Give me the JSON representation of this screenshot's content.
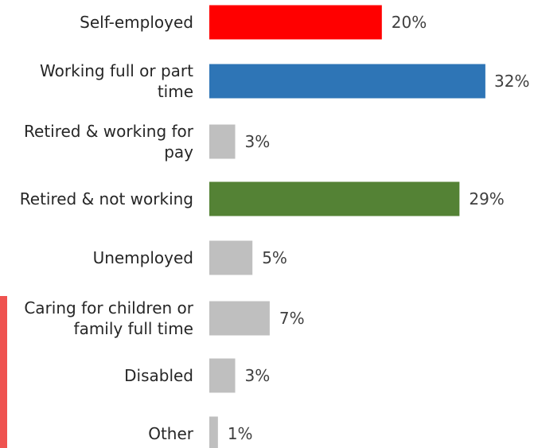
{
  "chart_data": {
    "type": "bar",
    "orientation": "horizontal",
    "categories": [
      [
        "Self-employed"
      ],
      [
        "Working full or part",
        "time"
      ],
      [
        "Retired & working for",
        "pay"
      ],
      [
        "Retired & not working"
      ],
      [
        "Unemployed"
      ],
      [
        "Caring for children or",
        "family full time"
      ],
      [
        "Disabled"
      ],
      [
        "Other"
      ]
    ],
    "values": [
      20,
      32,
      3,
      29,
      5,
      7,
      3,
      1
    ],
    "value_labels": [
      "20%",
      "32%",
      "3%",
      "29%",
      "5%",
      "7%",
      "3%",
      "1%"
    ],
    "colors": [
      "#ff0000",
      "#2e75b6",
      "#bfbfbf",
      "#548235",
      "#bfbfbf",
      "#bfbfbf",
      "#bfbfbf",
      "#bfbfbf"
    ],
    "title": "",
    "xlabel": "",
    "ylabel": "",
    "xlim": [
      0,
      32
    ],
    "grid": false,
    "legend": "none"
  },
  "accent_color": "#ef5350"
}
